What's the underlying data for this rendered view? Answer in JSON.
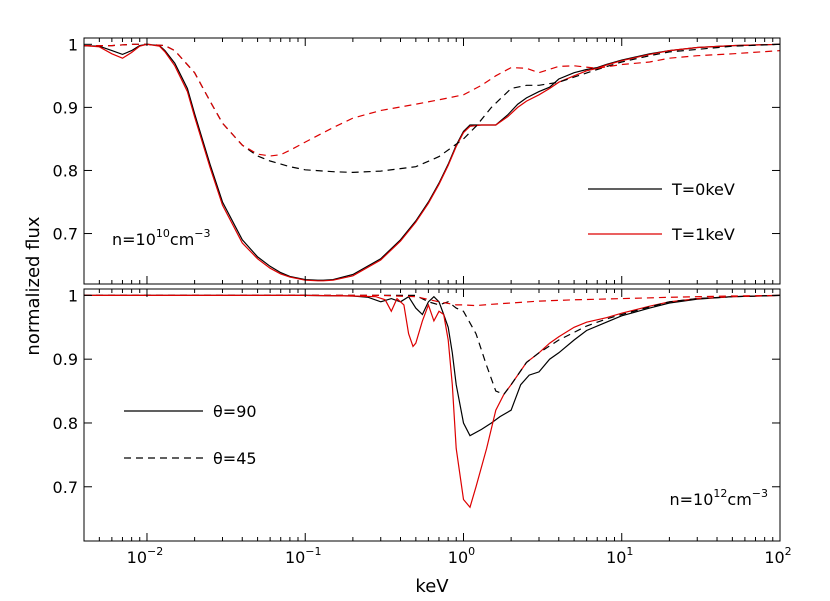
{
  "chart_data": [
    {
      "type": "line",
      "panel": "top",
      "x_scale": "log",
      "xlim": [
        0.004,
        100
      ],
      "ylim": [
        0.62,
        1.01
      ],
      "yticks": [
        0.7,
        0.8,
        0.9,
        1
      ],
      "ytick_labels": [
        "0.7",
        "0.8",
        "0.9",
        "1"
      ],
      "ylabel": "normalized flux",
      "annotation": {
        "base": "n=10",
        "exp": "10",
        "unit": "cm",
        "unit_exp": "−3"
      },
      "legend": [
        {
          "label": "T=0keV",
          "color": "#000000",
          "dash": "solid"
        },
        {
          "label": "T=1keV",
          "color": "#dd0000",
          "dash": "solid"
        }
      ],
      "series": [
        {
          "name": "T=0keV θ=90",
          "color": "#000000",
          "dash": "solid",
          "x": [
            0.004,
            0.005,
            0.006,
            0.007,
            0.008,
            0.009,
            0.01,
            0.012,
            0.013,
            0.015,
            0.018,
            0.02,
            0.025,
            0.03,
            0.04,
            0.05,
            0.06,
            0.07,
            0.08,
            0.1,
            0.12,
            0.13,
            0.15,
            0.2,
            0.3,
            0.4,
            0.5,
            0.6,
            0.7,
            0.8,
            0.9,
            1.0,
            1.1,
            1.3,
            1.6,
            1.9,
            2.2,
            2.5,
            3.0,
            3.5,
            4.0,
            5.0,
            6.0,
            7.0,
            8.0,
            10,
            15,
            20,
            30,
            50,
            100
          ],
          "y": [
            0.998,
            0.997,
            0.99,
            0.984,
            0.99,
            0.998,
            1.0,
            0.998,
            0.99,
            0.97,
            0.93,
            0.89,
            0.81,
            0.75,
            0.69,
            0.663,
            0.648,
            0.638,
            0.632,
            0.627,
            0.626,
            0.626,
            0.627,
            0.635,
            0.66,
            0.69,
            0.72,
            0.75,
            0.78,
            0.81,
            0.84,
            0.862,
            0.872,
            0.872,
            0.872,
            0.888,
            0.905,
            0.915,
            0.925,
            0.932,
            0.945,
            0.955,
            0.96,
            0.963,
            0.968,
            0.975,
            0.985,
            0.99,
            0.995,
            0.998,
            1.0
          ]
        },
        {
          "name": "T=1keV θ=90",
          "color": "#dd0000",
          "dash": "solid",
          "x": [
            0.004,
            0.005,
            0.006,
            0.007,
            0.008,
            0.009,
            0.01,
            0.012,
            0.013,
            0.015,
            0.018,
            0.02,
            0.025,
            0.03,
            0.04,
            0.05,
            0.06,
            0.07,
            0.08,
            0.1,
            0.12,
            0.13,
            0.15,
            0.2,
            0.3,
            0.4,
            0.5,
            0.6,
            0.7,
            0.8,
            0.9,
            1.0,
            1.1,
            1.3,
            1.6,
            1.9,
            2.2,
            2.5,
            3.0,
            3.5,
            4.0,
            5.0,
            6.0,
            7.0,
            8.0,
            10,
            15,
            20,
            30,
            50,
            100
          ],
          "y": [
            0.998,
            0.996,
            0.985,
            0.978,
            0.987,
            0.997,
            1.0,
            0.997,
            0.988,
            0.966,
            0.925,
            0.885,
            0.805,
            0.745,
            0.685,
            0.66,
            0.645,
            0.636,
            0.631,
            0.626,
            0.625,
            0.625,
            0.626,
            0.633,
            0.658,
            0.688,
            0.718,
            0.748,
            0.778,
            0.808,
            0.838,
            0.86,
            0.87,
            0.872,
            0.872,
            0.885,
            0.9,
            0.91,
            0.92,
            0.93,
            0.94,
            0.95,
            0.958,
            0.962,
            0.967,
            0.974,
            0.984,
            0.99,
            0.995,
            0.998,
            1.0
          ]
        },
        {
          "name": "T=0keV θ=45",
          "color": "#000000",
          "dash": "dashed",
          "x": [
            0.004,
            0.006,
            0.008,
            0.01,
            0.013,
            0.015,
            0.02,
            0.025,
            0.03,
            0.04,
            0.05,
            0.06,
            0.08,
            0.1,
            0.15,
            0.2,
            0.3,
            0.5,
            0.7,
            1.0,
            1.2,
            1.5,
            2.0,
            2.5,
            3.0,
            4.0,
            5.0,
            7.0,
            10,
            15,
            20,
            30,
            50,
            100
          ],
          "y": [
            0.998,
            0.998,
            1.0,
            1.0,
            0.998,
            0.99,
            0.955,
            0.91,
            0.875,
            0.84,
            0.823,
            0.815,
            0.806,
            0.801,
            0.798,
            0.797,
            0.799,
            0.806,
            0.822,
            0.85,
            0.87,
            0.9,
            0.93,
            0.935,
            0.935,
            0.94,
            0.948,
            0.96,
            0.972,
            0.982,
            0.988,
            0.992,
            0.997,
            1.0
          ]
        },
        {
          "name": "T=1keV θ=45",
          "color": "#dd0000",
          "dash": "dashed",
          "x": [
            0.004,
            0.006,
            0.008,
            0.01,
            0.013,
            0.015,
            0.02,
            0.025,
            0.03,
            0.04,
            0.05,
            0.06,
            0.07,
            0.08,
            0.1,
            0.15,
            0.2,
            0.3,
            0.5,
            0.7,
            1.0,
            1.3,
            1.6,
            2.0,
            2.5,
            3.0,
            4.0,
            5.0,
            7.0,
            10,
            15,
            20,
            30,
            50,
            100
          ],
          "y": [
            0.998,
            0.998,
            1.0,
            1.0,
            0.998,
            0.99,
            0.955,
            0.91,
            0.875,
            0.84,
            0.826,
            0.823,
            0.825,
            0.832,
            0.845,
            0.868,
            0.883,
            0.895,
            0.905,
            0.912,
            0.92,
            0.935,
            0.95,
            0.963,
            0.962,
            0.955,
            0.965,
            0.966,
            0.962,
            0.968,
            0.972,
            0.978,
            0.982,
            0.985,
            0.99
          ]
        }
      ]
    },
    {
      "type": "line",
      "panel": "bottom",
      "x_scale": "log",
      "xlim": [
        0.004,
        100
      ],
      "ylim": [
        0.615,
        1.01
      ],
      "yticks": [
        0.7,
        0.8,
        0.9,
        1
      ],
      "ytick_labels": [
        "0.7",
        "0.8",
        "0.9",
        "1"
      ],
      "xticks": [
        0.01,
        0.1,
        1,
        10,
        100
      ],
      "xtick_labels": [
        {
          "base": "10",
          "exp": "−2"
        },
        {
          "base": "10",
          "exp": "−1"
        },
        {
          "base": "10",
          "exp": "0"
        },
        {
          "base": "10",
          "exp": "1"
        },
        {
          "base": "10",
          "exp": "2"
        }
      ],
      "xlabel": "keV",
      "annotation": {
        "base": "n=10",
        "exp": "12",
        "unit": "cm",
        "unit_exp": "−3"
      },
      "legend": [
        {
          "label": "θ=90",
          "color": "#000000",
          "dash": "solid"
        },
        {
          "label": "θ=45",
          "color": "#000000",
          "dash": "dashed"
        }
      ],
      "series": [
        {
          "name": "T=0keV θ=90",
          "color": "#000000",
          "dash": "solid",
          "x": [
            0.004,
            0.1,
            0.2,
            0.25,
            0.3,
            0.35,
            0.4,
            0.45,
            0.5,
            0.55,
            0.6,
            0.65,
            0.7,
            0.75,
            0.8,
            0.85,
            0.9,
            1.0,
            1.1,
            1.3,
            1.5,
            1.7,
            2.0,
            2.3,
            2.6,
            3.0,
            3.5,
            4.0,
            5.0,
            6.0,
            8.0,
            10,
            15,
            20,
            30,
            50,
            100
          ],
          "y": [
            1.0,
            1.0,
            0.999,
            0.997,
            0.99,
            0.995,
            0.99,
            0.998,
            0.98,
            0.97,
            0.99,
            0.998,
            0.99,
            0.97,
            0.95,
            0.91,
            0.86,
            0.8,
            0.78,
            0.79,
            0.8,
            0.81,
            0.82,
            0.86,
            0.875,
            0.88,
            0.9,
            0.91,
            0.93,
            0.945,
            0.958,
            0.968,
            0.98,
            0.988,
            0.994,
            0.998,
            1.0
          ]
        },
        {
          "name": "T=1keV θ=90",
          "color": "#dd0000",
          "dash": "solid",
          "x": [
            0.004,
            0.1,
            0.2,
            0.28,
            0.32,
            0.35,
            0.38,
            0.42,
            0.45,
            0.48,
            0.5,
            0.55,
            0.6,
            0.65,
            0.7,
            0.75,
            0.8,
            0.85,
            0.9,
            1.0,
            1.1,
            1.2,
            1.4,
            1.6,
            1.8,
            2.0,
            2.5,
            3.0,
            3.5,
            4.0,
            5.0,
            6.0,
            8.0,
            10,
            15,
            20,
            30,
            50,
            100
          ],
          "y": [
            1.0,
            1.0,
            0.999,
            0.998,
            0.993,
            0.975,
            0.995,
            0.985,
            0.94,
            0.92,
            0.925,
            0.96,
            0.985,
            0.96,
            0.975,
            0.97,
            0.93,
            0.86,
            0.76,
            0.68,
            0.668,
            0.7,
            0.76,
            0.82,
            0.845,
            0.86,
            0.895,
            0.91,
            0.925,
            0.935,
            0.95,
            0.958,
            0.965,
            0.972,
            0.983,
            0.99,
            0.995,
            0.998,
            1.0
          ]
        },
        {
          "name": "θ=45 black",
          "color": "#000000",
          "dash": "dashed",
          "x": [
            0.004,
            0.3,
            0.5,
            0.6,
            0.7,
            0.8,
            0.9,
            1.0,
            1.2,
            1.4,
            1.6,
            1.8,
            2.0,
            2.5,
            3.0,
            4.0,
            5.0,
            6.0,
            8.0,
            10,
            15,
            20,
            30,
            50,
            100
          ],
          "y": [
            1.0,
            1.0,
            1.0,
            0.99,
            0.985,
            0.99,
            0.98,
            0.975,
            0.94,
            0.89,
            0.85,
            0.845,
            0.86,
            0.895,
            0.91,
            0.93,
            0.942,
            0.952,
            0.963,
            0.97,
            0.982,
            0.99,
            0.995,
            0.998,
            1.0
          ]
        },
        {
          "name": "θ=45 red",
          "color": "#dd0000",
          "dash": "dashed",
          "x": [
            0.004,
            0.3,
            0.5,
            0.7,
            0.9,
            1.0,
            1.2,
            1.5,
            2.0,
            3.0,
            5.0,
            10,
            20,
            50,
            100
          ],
          "y": [
            1.0,
            1.0,
            0.998,
            0.99,
            0.985,
            0.985,
            0.984,
            0.986,
            0.988,
            0.991,
            0.993,
            0.995,
            0.997,
            0.999,
            1.0
          ]
        }
      ]
    }
  ]
}
